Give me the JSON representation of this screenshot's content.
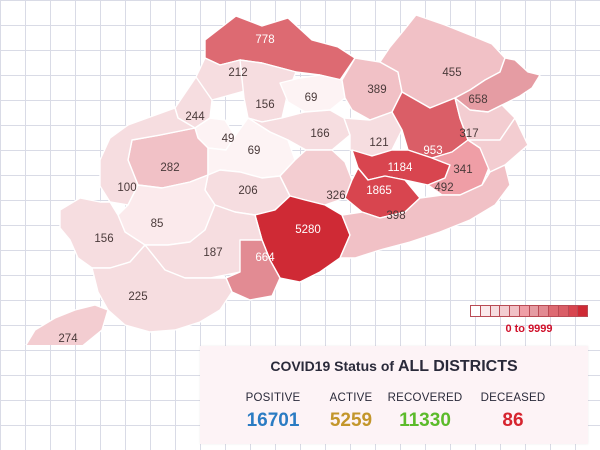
{
  "map": {
    "districts": [
      {
        "name": "district-north-1",
        "value": 778,
        "color": "#dd6a72"
      },
      {
        "name": "district-north-2",
        "value": 212,
        "color": "#f6dde0"
      },
      {
        "name": "district-north-3",
        "value": 156,
        "color": "#f6dde0"
      },
      {
        "name": "district-north-4",
        "value": 69,
        "color": "#fdf3f4"
      },
      {
        "name": "district-north-5",
        "value": 389,
        "color": "#f1c1c6"
      },
      {
        "name": "district-north-6",
        "value": 455,
        "color": "#f1c1c6"
      },
      {
        "name": "district-north-7",
        "value": 658,
        "color": "#e59ca3"
      },
      {
        "name": "district-west-1",
        "value": 244,
        "color": "#f6dde0"
      },
      {
        "name": "district-central-1",
        "value": 49,
        "color": "#fdf3f4"
      },
      {
        "name": "district-central-2",
        "value": 166,
        "color": "#f6dde0"
      },
      {
        "name": "district-central-3",
        "value": 121,
        "color": "#f6dde0"
      },
      {
        "name": "district-east-1",
        "value": 953,
        "color": "#da5e67"
      },
      {
        "name": "district-east-2",
        "value": 317,
        "color": "#f3cdd1"
      },
      {
        "name": "district-west-2",
        "value": 282,
        "color": "#f1c1c6"
      },
      {
        "name": "district-central-4",
        "value": 69,
        "color": "#fdf3f4"
      },
      {
        "name": "district-west-3",
        "value": 100,
        "color": "#f6dde0"
      },
      {
        "name": "district-central-5",
        "value": 206,
        "color": "#f6dde0"
      },
      {
        "name": "district-central-6",
        "value": 326,
        "color": "#f3cdd1"
      },
      {
        "name": "district-east-3",
        "value": 1184,
        "color": "#d8454f"
      },
      {
        "name": "district-east-4",
        "value": 1865,
        "color": "#d8454f"
      },
      {
        "name": "district-east-5",
        "value": 492,
        "color": "#ef9ea6"
      },
      {
        "name": "district-east-6",
        "value": 341,
        "color": "#f3cdd1"
      },
      {
        "name": "district-west-4",
        "value": 85,
        "color": "#fbeaec"
      },
      {
        "name": "district-south-1",
        "value": 5280,
        "color": "#cf2a35"
      },
      {
        "name": "district-south-2",
        "value": 398,
        "color": "#f1c1c6"
      },
      {
        "name": "district-west-5",
        "value": 156,
        "color": "#f6dde0"
      },
      {
        "name": "district-south-3",
        "value": 187,
        "color": "#f6dde0"
      },
      {
        "name": "district-south-4",
        "value": 664,
        "color": "#e28b93"
      },
      {
        "name": "district-south-5",
        "value": 225,
        "color": "#f6dde0"
      },
      {
        "name": "district-south-6",
        "value": 274,
        "color": "#f3cdd1"
      }
    ]
  },
  "legend": {
    "range_label": "0 to 9999",
    "colors": [
      "#ffffff",
      "#fbeaec",
      "#f6dde0",
      "#f3cdd1",
      "#f1c1c6",
      "#ef9ea6",
      "#e59ca3",
      "#e28b93",
      "#dd6a72",
      "#da5e67",
      "#d8454f",
      "#cf2a35"
    ]
  },
  "status": {
    "title_prefix": "COVID19 Status of ",
    "title_emphasis": "ALL DISTRICTS",
    "stats": [
      {
        "label": "POSITIVE",
        "value": "16701",
        "color": "#2b7cc3"
      },
      {
        "label": "ACTIVE",
        "value": "5259",
        "color": "#c3962b"
      },
      {
        "label": "RECOVERED",
        "value": "11330",
        "color": "#5cbb2b"
      },
      {
        "label": "DECEASED",
        "value": "86",
        "color": "#d6242f"
      }
    ]
  }
}
